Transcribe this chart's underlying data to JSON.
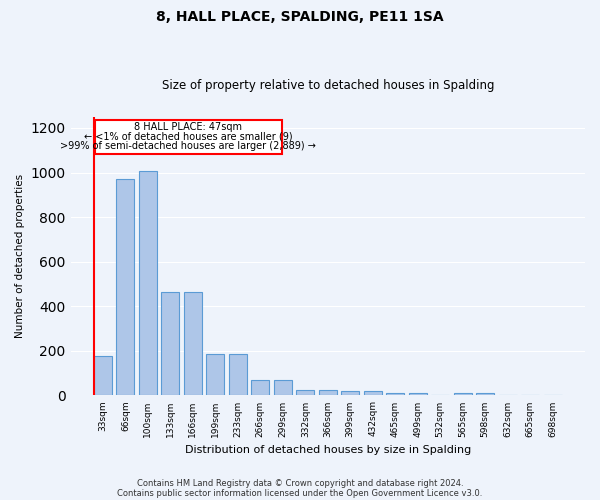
{
  "title": "8, HALL PLACE, SPALDING, PE11 1SA",
  "subtitle": "Size of property relative to detached houses in Spalding",
  "xlabel": "Distribution of detached houses by size in Spalding",
  "ylabel": "Number of detached properties",
  "footnote1": "Contains HM Land Registry data © Crown copyright and database right 2024.",
  "footnote2": "Contains public sector information licensed under the Open Government Licence v3.0.",
  "annotation_line1": "8 HALL PLACE: 47sqm",
  "annotation_line2": "← <1% of detached houses are smaller (9)",
  "annotation_line3": ">99% of semi-detached houses are larger (2,889) →",
  "bar_labels": [
    "33sqm",
    "66sqm",
    "100sqm",
    "133sqm",
    "166sqm",
    "199sqm",
    "233sqm",
    "266sqm",
    "299sqm",
    "332sqm",
    "366sqm",
    "399sqm",
    "432sqm",
    "465sqm",
    "499sqm",
    "532sqm",
    "565sqm",
    "598sqm",
    "632sqm",
    "665sqm",
    "698sqm"
  ],
  "bar_values": [
    175,
    970,
    1005,
    465,
    465,
    188,
    188,
    70,
    70,
    25,
    25,
    18,
    18,
    10,
    10,
    0,
    13,
    13,
    0,
    0,
    0
  ],
  "bar_color": "#aec6e8",
  "bar_edge_color": "#5b9bd5",
  "background_color": "#eef3fb",
  "grid_color": "#ffffff",
  "ylim": [
    0,
    1250
  ],
  "yticks": [
    0,
    200,
    400,
    600,
    800,
    1000,
    1200
  ]
}
